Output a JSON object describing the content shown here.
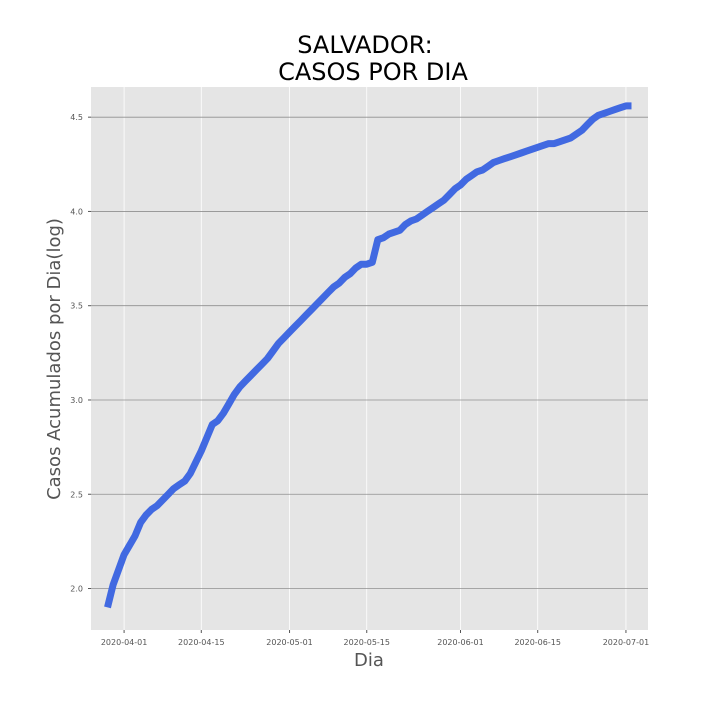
{
  "chart_data": {
    "type": "line",
    "title": [
      "SALVADOR:",
      "CASOS POR DIA"
    ],
    "xlabel": "Dia",
    "ylabel": "Casos Acumulados por Dia(log)",
    "ylim": [
      1.78,
      4.66
    ],
    "yticks": [
      2.0,
      2.5,
      3.0,
      3.5,
      4.0,
      4.5
    ],
    "ytick_labels": [
      "2.0",
      "2.5",
      "3.0",
      "3.5",
      "4.0",
      "4.5"
    ],
    "xlim": [
      "2020-03-26",
      "2020-07-05"
    ],
    "xticks": [
      "2020-04-01",
      "2020-04-15",
      "2020-05-01",
      "2020-05-15",
      "2020-06-01",
      "2020-06-15",
      "2020-07-01"
    ],
    "grid": true,
    "colors": {
      "line": "#4169e1",
      "plot_background": "#e5e5e5",
      "grid": "#8f8f8f",
      "grid_x": "#ffffff"
    },
    "series": [
      {
        "x": [
          "2020-03-29",
          "2020-03-30",
          "2020-03-31",
          "2020-04-01",
          "2020-04-02",
          "2020-04-03",
          "2020-04-04",
          "2020-04-05",
          "2020-04-06",
          "2020-04-07",
          "2020-04-08",
          "2020-04-09",
          "2020-04-10",
          "2020-04-11",
          "2020-04-12",
          "2020-04-13",
          "2020-04-14",
          "2020-04-15",
          "2020-04-16",
          "2020-04-17",
          "2020-04-18",
          "2020-04-19",
          "2020-04-20",
          "2020-04-21",
          "2020-04-22",
          "2020-04-23",
          "2020-04-24",
          "2020-04-25",
          "2020-04-26",
          "2020-04-27",
          "2020-04-28",
          "2020-04-29",
          "2020-04-30",
          "2020-05-01",
          "2020-05-02",
          "2020-05-03",
          "2020-05-04",
          "2020-05-05",
          "2020-05-06",
          "2020-05-07",
          "2020-05-08",
          "2020-05-09",
          "2020-05-10",
          "2020-05-11",
          "2020-05-12",
          "2020-05-13",
          "2020-05-14",
          "2020-05-15",
          "2020-05-16",
          "2020-05-17",
          "2020-05-18",
          "2020-05-19",
          "2020-05-20",
          "2020-05-21",
          "2020-05-22",
          "2020-05-23",
          "2020-05-24",
          "2020-05-25",
          "2020-05-26",
          "2020-05-27",
          "2020-05-28",
          "2020-05-29",
          "2020-05-30",
          "2020-05-31",
          "2020-06-01",
          "2020-06-02",
          "2020-06-03",
          "2020-06-04",
          "2020-06-05",
          "2020-06-06",
          "2020-06-07",
          "2020-06-08",
          "2020-06-09",
          "2020-06-10",
          "2020-06-11",
          "2020-06-12",
          "2020-06-13",
          "2020-06-14",
          "2020-06-15",
          "2020-06-16",
          "2020-06-17",
          "2020-06-18",
          "2020-06-19",
          "2020-06-20",
          "2020-06-21",
          "2020-06-22",
          "2020-06-23",
          "2020-06-24",
          "2020-06-25",
          "2020-06-26",
          "2020-06-27",
          "2020-06-28",
          "2020-06-29",
          "2020-06-30",
          "2020-07-01",
          "2020-07-02"
        ],
        "values": [
          1.9,
          2.02,
          2.1,
          2.18,
          2.23,
          2.28,
          2.35,
          2.39,
          2.42,
          2.44,
          2.47,
          2.5,
          2.53,
          2.55,
          2.57,
          2.61,
          2.67,
          2.73,
          2.8,
          2.87,
          2.89,
          2.93,
          2.98,
          3.03,
          3.07,
          3.1,
          3.13,
          3.16,
          3.19,
          3.22,
          3.26,
          3.3,
          3.33,
          3.36,
          3.39,
          3.42,
          3.45,
          3.48,
          3.51,
          3.54,
          3.57,
          3.6,
          3.62,
          3.65,
          3.67,
          3.7,
          3.72,
          3.72,
          3.73,
          3.85,
          3.86,
          3.88,
          3.89,
          3.9,
          3.93,
          3.95,
          3.96,
          3.98,
          4.0,
          4.02,
          4.04,
          4.06,
          4.09,
          4.12,
          4.14,
          4.17,
          4.19,
          4.21,
          4.22,
          4.24,
          4.26,
          4.27,
          4.28,
          4.29,
          4.3,
          4.31,
          4.32,
          4.33,
          4.34,
          4.35,
          4.36,
          4.36,
          4.37,
          4.38,
          4.39,
          4.41,
          4.43,
          4.46,
          4.49,
          4.51,
          4.52,
          4.53,
          4.54,
          4.55,
          4.56,
          4.56
        ]
      }
    ]
  }
}
